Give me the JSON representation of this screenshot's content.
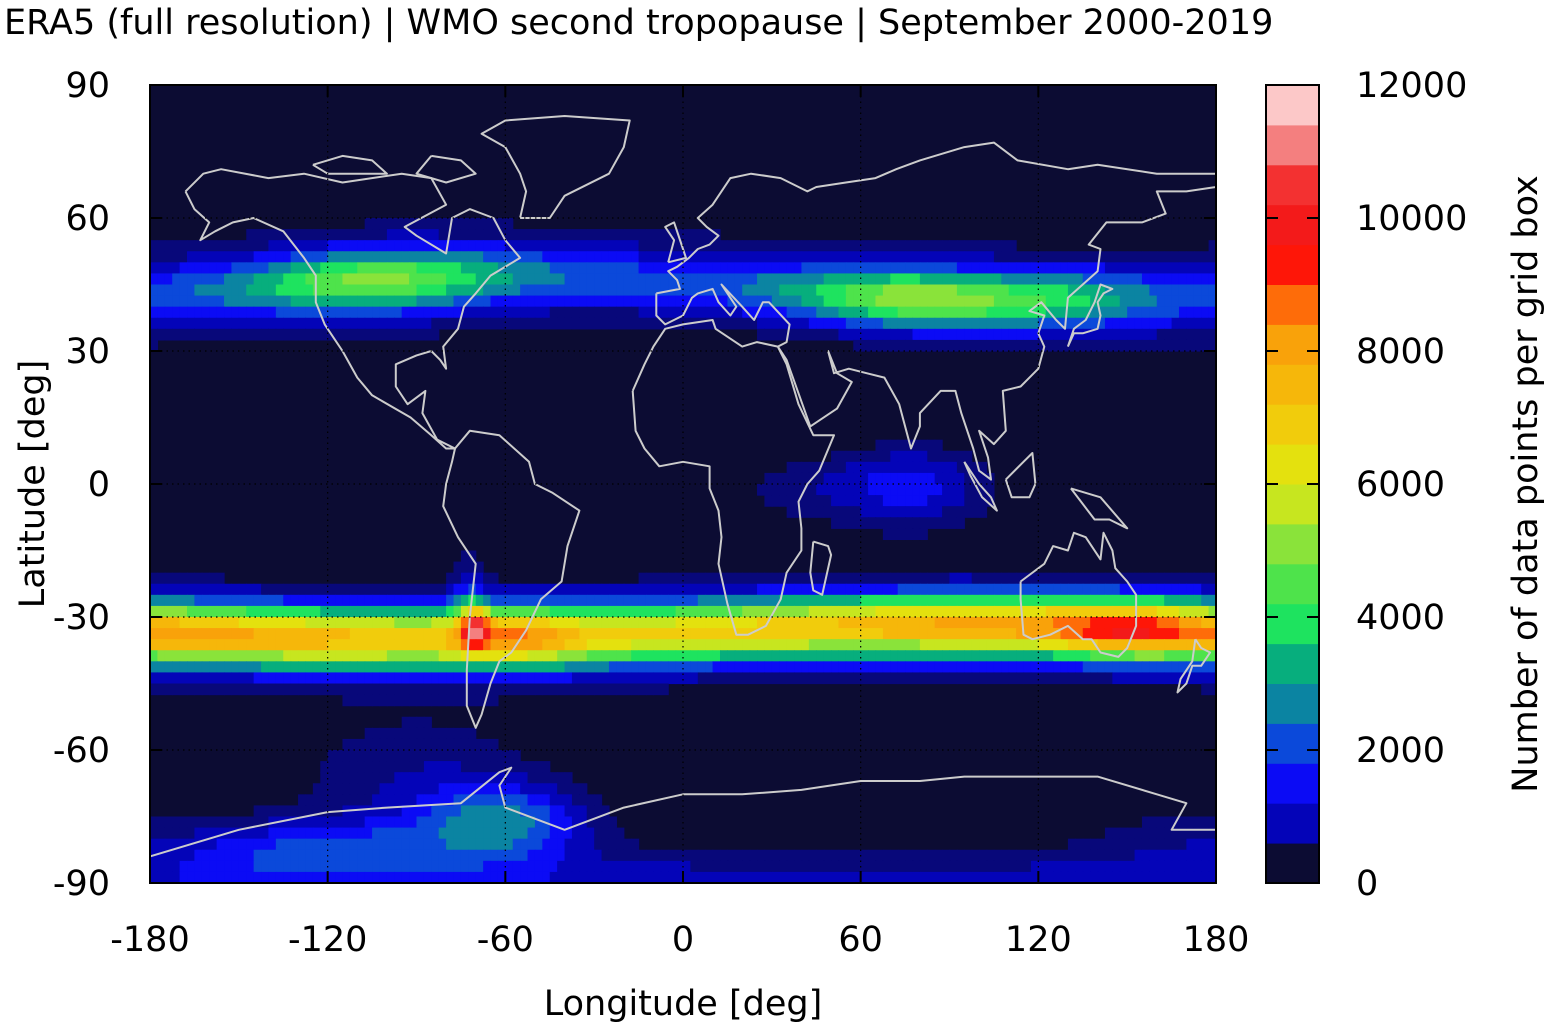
{
  "chart_data": {
    "type": "heatmap",
    "title": "ERA5 (full resolution) | WMO second tropopause | September 2000-2019",
    "xlabel": "Longitude [deg]",
    "ylabel": "Latitude [deg]",
    "xlim": [
      -180,
      180
    ],
    "ylim": [
      -90,
      90
    ],
    "x_ticks": [
      "-180",
      "-120",
      "-60",
      "0",
      "60",
      "120",
      "180"
    ],
    "y_ticks": [
      "90",
      "60",
      "30",
      "0",
      "-30",
      "-60",
      "-90"
    ],
    "x_tick_values": [
      -180,
      -120,
      -60,
      0,
      60,
      120,
      180
    ],
    "y_tick_values": [
      90,
      60,
      30,
      0,
      -30,
      -60,
      -90
    ],
    "grid": true,
    "colorbar": {
      "label": "Number of data points per grid box",
      "range": [
        0,
        12000
      ],
      "step": 600,
      "tick_labels": [
        "0",
        "2000",
        "4000",
        "6000",
        "8000",
        "10000",
        "12000"
      ],
      "tick_values": [
        0,
        2000,
        4000,
        6000,
        8000,
        10000,
        12000
      ],
      "colors": [
        "#0c0c33",
        "#08087a",
        "#0404b8",
        "#0b0bf5",
        "#0b49da",
        "#0b84a2",
        "#07ae7d",
        "#1ee35f",
        "#4ee34b",
        "#8ae33a",
        "#c7e61f",
        "#e4e10e",
        "#f1cc0c",
        "#f6b70a",
        "#f9a20a",
        "#fe6c09",
        "#fe1608",
        "#f31a1a",
        "#f33131",
        "#f47f7f",
        "#fcc8c8"
      ]
    },
    "coastline_color": "#cccccc",
    "field_features": [
      {
        "region": "NH mid-latitude band",
        "lon_range": [
          -180,
          180
        ],
        "lat_range": [
          35,
          55
        ],
        "peak_value": 4000
      },
      {
        "region": "North America jet",
        "lon_center": -105,
        "lat_center": 44,
        "peak_value": 4200
      },
      {
        "region": "Central Asia jet",
        "lon_center": 80,
        "lat_center": 42,
        "peak_value": 4300
      },
      {
        "region": "Tropical Indian Ocean",
        "lon_center": 75,
        "lat_center": 0,
        "peak_value": 2500
      },
      {
        "region": "SH subtropical band",
        "lon_range": [
          -180,
          180
        ],
        "lat_range": [
          -45,
          -20
        ],
        "peak_value": 7500
      },
      {
        "region": "South America maximum",
        "lon_center": -70,
        "lat_center": -32,
        "peak_value": 10500
      },
      {
        "region": "Australia maximum",
        "lon_center": 150,
        "lat_center": -33,
        "peak_value": 8500
      },
      {
        "region": "Antarctic Peninsula / Weddell",
        "lon_center": -60,
        "lat_center": -75,
        "peak_value": 3500
      },
      {
        "region": "Ross Sea / Pacific Antarctic",
        "lon_center": -120,
        "lat_center": -80,
        "peak_value": 3000
      }
    ]
  }
}
